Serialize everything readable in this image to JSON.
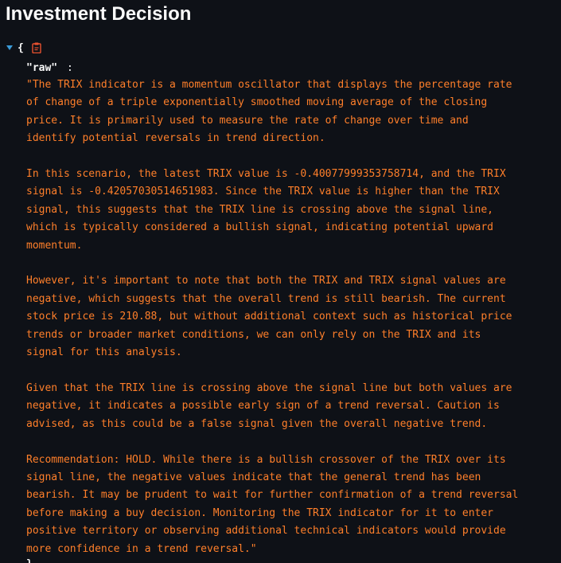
{
  "page": {
    "title": "Investment Decision"
  },
  "json_viewer": {
    "open_brace": "{",
    "close_brace": "}",
    "key": "\"raw\"",
    "colon": ":",
    "value": "\"The TRIX indicator is a momentum oscillator that displays the percentage rate\nof change of a triple exponentially smoothed moving average of the closing\nprice. It is primarily used to measure the rate of change over time and\nidentify potential reversals in trend direction.\n\nIn this scenario, the latest TRIX value is -0.40077999353758714, and the TRIX\nsignal is -0.42057030514651983. Since the TRIX value is higher than the TRIX\nsignal, this suggests that the TRIX line is crossing above the signal line,\nwhich is typically considered a bullish signal, indicating potential upward\nmomentum.\n\nHowever, it's important to note that both the TRIX and TRIX signal values are\nnegative, which suggests that the overall trend is still bearish. The current\nstock price is 210.88, but without additional context such as historical price\ntrends or broader market conditions, we can only rely on the TRIX and its\nsignal for this analysis.\n\nGiven that the TRIX line is crossing above the signal line but both values are\nnegative, it indicates a possible early sign of a trend reversal. Caution is\nadvised, as this could be a false signal given the overall negative trend.\n\nRecommendation: HOLD. While there is a bullish crossover of the TRIX over its\nsignal line, the negative values indicate that the general trend has been\nbearish. It may be prudent to wait for further confirmation of a trend reversal\nbefore making a buy decision. Monitoring the TRIX indicator for it to enter\npositive territory or observing additional technical indicators would provide\nmore confidence in a trend reversal.\"",
    "icons": {
      "toggle": "caret-down-icon",
      "copy": "clipboard-icon"
    }
  },
  "colors": {
    "background": "#0e1117",
    "title_text": "#fafafa",
    "string_value": "#ff7f2a",
    "caret": "#3b9bd8",
    "copy_icon": "#e8512f"
  }
}
